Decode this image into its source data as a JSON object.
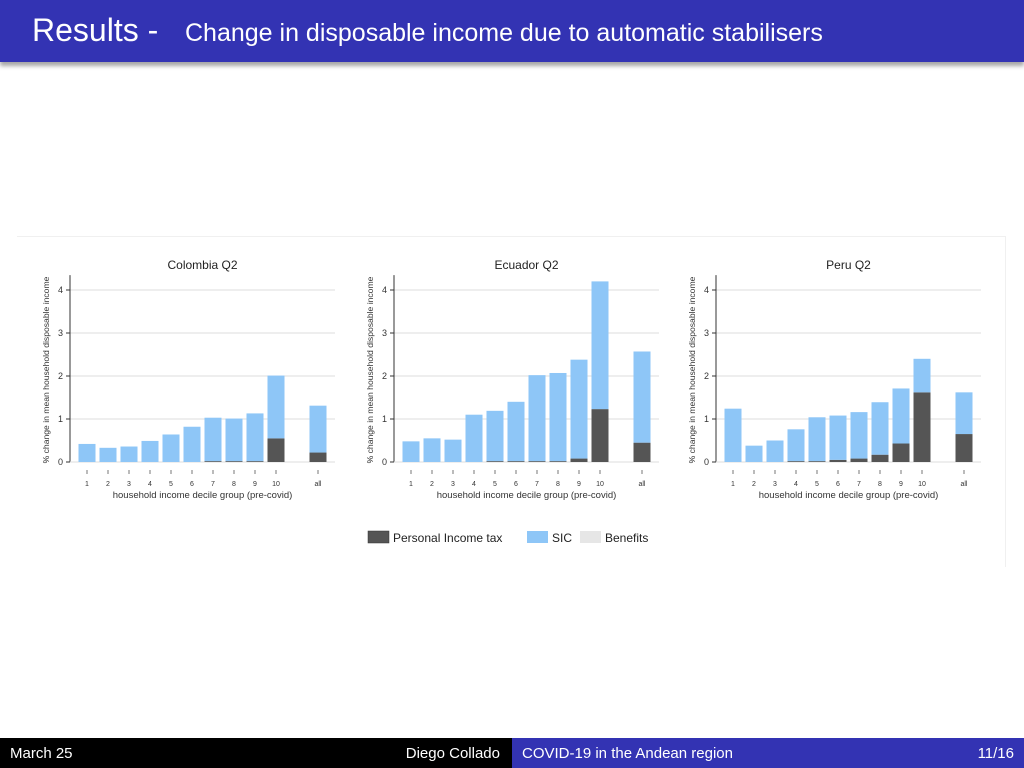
{
  "header": {
    "title": "Results -",
    "subtitle": "Change in disposable income due to automatic stabilisers"
  },
  "footer": {
    "date": "March 25",
    "author": "Diego Collado",
    "talk_title": "COVID-19 in the Andean region",
    "page": "11/16"
  },
  "colors": {
    "tax": "#555555",
    "sic": "#8ec6f7",
    "benefits": "#e6e6e6",
    "header": "#3333b3"
  },
  "legend": [
    {
      "key": "tax",
      "label": "Personal Income tax"
    },
    {
      "key": "sic",
      "label": "SIC"
    },
    {
      "key": "benefits",
      "label": "Benefits"
    }
  ],
  "chart_data": [
    {
      "type": "bar",
      "title": "Colombia Q2",
      "xlabel": "household income decile group (pre-covid)",
      "ylabel": "% change in mean household disposable income",
      "ylim": [
        0,
        4.3
      ],
      "yticks": [
        0,
        1,
        2,
        3,
        4
      ],
      "categories": [
        "1",
        "2",
        "3",
        "4",
        "5",
        "6",
        "7",
        "8",
        "9",
        "10",
        "all"
      ],
      "series": [
        {
          "name": "Personal Income tax",
          "values": [
            0,
            0,
            0,
            0,
            0,
            0,
            0.02,
            0.02,
            0.02,
            0.55,
            0.22
          ]
        },
        {
          "name": "SIC",
          "values": [
            0.42,
            0.33,
            0.36,
            0.49,
            0.64,
            0.82,
            1.01,
            0.99,
            1.11,
            1.46,
            1.09
          ]
        },
        {
          "name": "Benefits",
          "values": [
            0,
            0,
            0,
            0,
            0,
            0,
            0,
            0,
            0,
            0,
            0
          ]
        }
      ]
    },
    {
      "type": "bar",
      "title": "Ecuador Q2",
      "xlabel": "household income decile group (pre-covid)",
      "ylabel": "% change in mean household disposable income",
      "ylim": [
        0,
        4.3
      ],
      "yticks": [
        0,
        1,
        2,
        3,
        4
      ],
      "categories": [
        "1",
        "2",
        "3",
        "4",
        "5",
        "6",
        "7",
        "8",
        "9",
        "10",
        "all"
      ],
      "series": [
        {
          "name": "Personal Income tax",
          "values": [
            0,
            0,
            0,
            0,
            0.02,
            0.02,
            0.02,
            0.02,
            0.08,
            1.23,
            0.45
          ]
        },
        {
          "name": "SIC",
          "values": [
            0.48,
            0.55,
            0.52,
            1.1,
            1.17,
            1.38,
            2.0,
            2.05,
            2.3,
            2.97,
            2.12
          ]
        },
        {
          "name": "Benefits",
          "values": [
            0,
            0,
            0,
            0,
            0,
            0,
            0,
            0,
            0,
            0,
            0
          ]
        }
      ]
    },
    {
      "type": "bar",
      "title": "Peru Q2",
      "xlabel": "household income decile group (pre-covid)",
      "ylabel": "% change in mean household disposable income",
      "ylim": [
        0,
        4.3
      ],
      "yticks": [
        0,
        1,
        2,
        3,
        4
      ],
      "categories": [
        "1",
        "2",
        "3",
        "4",
        "5",
        "6",
        "7",
        "8",
        "9",
        "10",
        "all"
      ],
      "series": [
        {
          "name": "Personal Income tax",
          "values": [
            0,
            0,
            0,
            0.02,
            0.02,
            0.05,
            0.08,
            0.17,
            0.43,
            1.62,
            0.65
          ]
        },
        {
          "name": "SIC",
          "values": [
            1.24,
            0.38,
            0.5,
            0.74,
            1.02,
            1.03,
            1.08,
            1.22,
            1.28,
            0.78,
            0.97
          ]
        },
        {
          "name": "Benefits",
          "values": [
            0,
            0,
            0,
            0,
            0,
            0,
            0,
            0,
            0,
            0,
            0
          ]
        }
      ]
    }
  ]
}
